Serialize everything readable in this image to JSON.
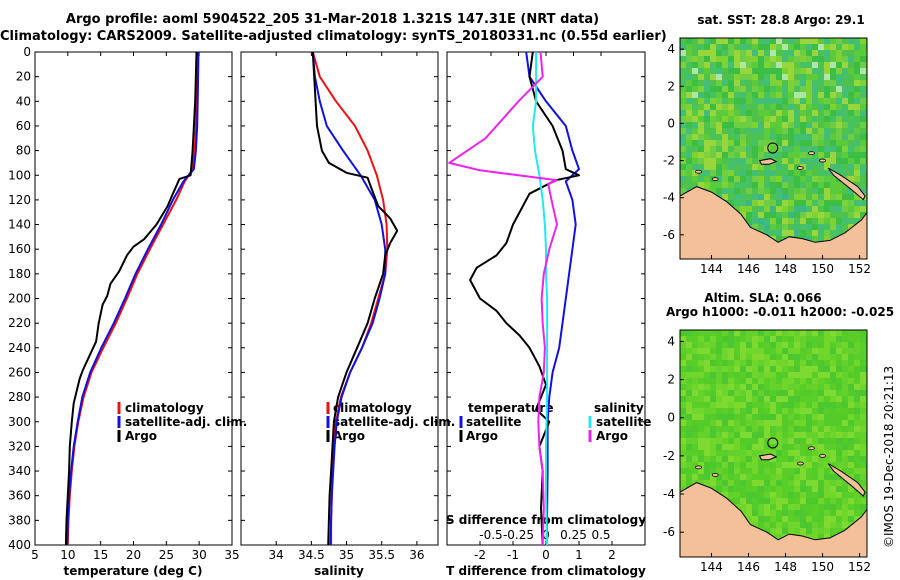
{
  "header": {
    "line1": "Argo profile: aoml 5904522_205 31-Mar-2018 1.321S 147.31E (NRT data)",
    "line2": "Climatology: CARS2009. Satellite-adjusted climatology: synTS_20180331.nc (0.55d earlier)"
  },
  "footer": {
    "credit": "©IMOS 19-Dec-2018 20:21:13"
  },
  "colors": {
    "climatology": "#ee1111",
    "satellite": "#1111dd",
    "argo": "#000000",
    "sat_salinity": "#22e8f0",
    "argo_salinity": "#ee22ee",
    "land": "#f4c09a"
  },
  "chart_data": [
    {
      "id": "temperature",
      "type": "line",
      "xlabel": "temperature (deg C)",
      "ylabel": "",
      "xlim": [
        5,
        35
      ],
      "ylim": [
        400,
        0
      ],
      "xticks": [
        5,
        10,
        15,
        20,
        25,
        30,
        35
      ],
      "yticks": [
        0,
        20,
        40,
        60,
        80,
        100,
        120,
        140,
        160,
        180,
        200,
        220,
        240,
        260,
        280,
        300,
        320,
        340,
        360,
        380,
        400
      ],
      "legend": [
        "climatology",
        "satellite-adj. clim.",
        "Argo"
      ],
      "series": [
        {
          "name": "climatology",
          "color": "#ee1111",
          "points": [
            [
              29.8,
              0
            ],
            [
              29.7,
              30
            ],
            [
              29.5,
              60
            ],
            [
              29.3,
              80
            ],
            [
              29.0,
              95
            ],
            [
              27.8,
              105
            ],
            [
              26.5,
              120
            ],
            [
              24.5,
              140
            ],
            [
              22.5,
              160
            ],
            [
              20.6,
              180
            ],
            [
              19.0,
              200
            ],
            [
              17.3,
              220
            ],
            [
              15.4,
              240
            ],
            [
              13.6,
              260
            ],
            [
              12.4,
              280
            ],
            [
              11.6,
              300
            ],
            [
              11.0,
              320
            ],
            [
              10.6,
              340
            ],
            [
              10.3,
              360
            ],
            [
              10.1,
              380
            ],
            [
              10.0,
              400
            ]
          ]
        },
        {
          "name": "satellite-adj. clim.",
          "color": "#1111dd",
          "points": [
            [
              29.9,
              0
            ],
            [
              29.8,
              30
            ],
            [
              29.7,
              60
            ],
            [
              29.5,
              80
            ],
            [
              29.2,
              95
            ],
            [
              27.6,
              105
            ],
            [
              26.0,
              120
            ],
            [
              24.2,
              140
            ],
            [
              22.2,
              160
            ],
            [
              20.3,
              180
            ],
            [
              18.7,
              200
            ],
            [
              17.0,
              220
            ],
            [
              15.1,
              240
            ],
            [
              13.4,
              260
            ],
            [
              12.2,
              280
            ],
            [
              11.5,
              300
            ],
            [
              10.9,
              320
            ],
            [
              10.5,
              340
            ],
            [
              10.2,
              360
            ],
            [
              10.0,
              380
            ],
            [
              9.9,
              400
            ]
          ]
        },
        {
          "name": "Argo",
          "color": "#000000",
          "points": [
            [
              29.6,
              0
            ],
            [
              29.4,
              40
            ],
            [
              29.0,
              80
            ],
            [
              28.7,
              100
            ],
            [
              27.0,
              103
            ],
            [
              26.0,
              115
            ],
            [
              25.2,
              125
            ],
            [
              23.5,
              140
            ],
            [
              21.6,
              152
            ],
            [
              20.0,
              158
            ],
            [
              19.0,
              165
            ],
            [
              17.8,
              178
            ],
            [
              16.5,
              188
            ],
            [
              16.0,
              198
            ],
            [
              15.3,
              205
            ],
            [
              14.7,
              220
            ],
            [
              14.3,
              235
            ],
            [
              13.0,
              250
            ],
            [
              12.3,
              258
            ],
            [
              11.8,
              265
            ],
            [
              10.9,
              285
            ],
            [
              10.6,
              300
            ],
            [
              10.3,
              320
            ],
            [
              10.2,
              340
            ],
            [
              10.0,
              360
            ],
            [
              9.8,
              380
            ],
            [
              9.7,
              400
            ]
          ]
        }
      ]
    },
    {
      "id": "salinity",
      "type": "line",
      "xlabel": "salinity",
      "ylabel": "",
      "xlim": [
        33.5,
        36.3
      ],
      "ylim": [
        400,
        0
      ],
      "xticks": [
        34,
        34.5,
        35,
        35.5,
        36
      ],
      "legend": [
        "climatology",
        "satellite-adj. clim.",
        "Argo"
      ],
      "series": [
        {
          "name": "climatology",
          "color": "#ee1111",
          "points": [
            [
              34.52,
              0
            ],
            [
              34.62,
              20
            ],
            [
              34.85,
              40
            ],
            [
              35.12,
              60
            ],
            [
              35.3,
              80
            ],
            [
              35.43,
              100
            ],
            [
              35.52,
              120
            ],
            [
              35.57,
              140
            ],
            [
              35.58,
              160
            ],
            [
              35.55,
              180
            ],
            [
              35.45,
              200
            ],
            [
              35.35,
              220
            ],
            [
              35.22,
              240
            ],
            [
              35.05,
              260
            ],
            [
              34.92,
              280
            ],
            [
              34.85,
              300
            ],
            [
              34.82,
              320
            ],
            [
              34.8,
              340
            ],
            [
              34.79,
              360
            ],
            [
              34.78,
              380
            ],
            [
              34.78,
              400
            ]
          ]
        },
        {
          "name": "satellite-adj. clim.",
          "color": "#1111dd",
          "points": [
            [
              34.52,
              0
            ],
            [
              34.55,
              20
            ],
            [
              34.62,
              40
            ],
            [
              34.72,
              60
            ],
            [
              34.95,
              80
            ],
            [
              35.2,
              100
            ],
            [
              35.4,
              120
            ],
            [
              35.5,
              140
            ],
            [
              35.55,
              160
            ],
            [
              35.55,
              180
            ],
            [
              35.47,
              200
            ],
            [
              35.37,
              220
            ],
            [
              35.22,
              240
            ],
            [
              35.05,
              260
            ],
            [
              34.93,
              280
            ],
            [
              34.86,
              300
            ],
            [
              34.83,
              320
            ],
            [
              34.81,
              340
            ],
            [
              34.79,
              360
            ],
            [
              34.78,
              380
            ],
            [
              34.77,
              400
            ]
          ]
        },
        {
          "name": "Argo",
          "color": "#000000",
          "points": [
            [
              34.52,
              0
            ],
            [
              34.55,
              30
            ],
            [
              34.58,
              60
            ],
            [
              34.65,
              80
            ],
            [
              34.75,
              90
            ],
            [
              35.0,
              98
            ],
            [
              35.3,
              102
            ],
            [
              35.35,
              110
            ],
            [
              35.45,
              125
            ],
            [
              35.62,
              135
            ],
            [
              35.72,
              145
            ],
            [
              35.62,
              155
            ],
            [
              35.55,
              165
            ],
            [
              35.52,
              180
            ],
            [
              35.4,
              200
            ],
            [
              35.3,
              220
            ],
            [
              35.15,
              240
            ],
            [
              35.0,
              260
            ],
            [
              34.88,
              280
            ],
            [
              34.82,
              300
            ],
            [
              34.8,
              320
            ],
            [
              34.78,
              340
            ],
            [
              34.76,
              360
            ],
            [
              34.75,
              380
            ],
            [
              34.74,
              400
            ]
          ]
        }
      ]
    },
    {
      "id": "difference",
      "type": "line",
      "xlabel": "T difference from climatology",
      "xlabel2": "S difference from climatology",
      "xlim": [
        -3,
        3
      ],
      "ylim": [
        400,
        0
      ],
      "xticks": [
        -2,
        -1,
        0,
        1,
        2
      ],
      "xlim2": [
        -0.9,
        0.9
      ],
      "xticks2": [
        -0.5,
        -0.25,
        0,
        0.25,
        0.5
      ],
      "legend_left_title": "temperature",
      "legend_right_title": "salinity",
      "legend": [
        "satellite",
        "Argo",
        "satellite",
        "Argo"
      ],
      "series": [
        {
          "name": "T satellite",
          "color": "#1111dd",
          "axis": "T",
          "points": [
            [
              -0.6,
              0
            ],
            [
              -0.5,
              20
            ],
            [
              0.0,
              40
            ],
            [
              0.6,
              60
            ],
            [
              0.8,
              80
            ],
            [
              1.0,
              95
            ],
            [
              0.6,
              105
            ],
            [
              0.8,
              120
            ],
            [
              0.9,
              140
            ],
            [
              0.8,
              160
            ],
            [
              0.7,
              180
            ],
            [
              0.6,
              200
            ],
            [
              0.5,
              220
            ],
            [
              0.4,
              240
            ],
            [
              0.2,
              260
            ],
            [
              0.1,
              280
            ],
            [
              0.05,
              300
            ],
            [
              0.05,
              340
            ],
            [
              0.02,
              400
            ]
          ]
        },
        {
          "name": "T Argo",
          "color": "#000000",
          "axis": "T",
          "points": [
            [
              -0.4,
              0
            ],
            [
              -0.5,
              20
            ],
            [
              -0.3,
              40
            ],
            [
              0.2,
              60
            ],
            [
              0.5,
              80
            ],
            [
              0.6,
              95
            ],
            [
              1.0,
              100
            ],
            [
              0.3,
              104
            ],
            [
              -0.5,
              115
            ],
            [
              -1.0,
              140
            ],
            [
              -1.2,
              155
            ],
            [
              -1.5,
              165
            ],
            [
              -2.1,
              175
            ],
            [
              -2.3,
              185
            ],
            [
              -2.0,
              200
            ],
            [
              -1.5,
              210
            ],
            [
              -1.2,
              220
            ],
            [
              -0.8,
              230
            ],
            [
              -0.5,
              240
            ],
            [
              -0.2,
              255
            ],
            [
              0.0,
              270
            ],
            [
              -0.3,
              290
            ],
            [
              0.1,
              300
            ],
            [
              -0.2,
              320
            ],
            [
              -0.1,
              340
            ],
            [
              -0.15,
              370
            ],
            [
              -0.1,
              400
            ]
          ]
        },
        {
          "name": "S satellite",
          "color": "#22e8f0",
          "axis": "S",
          "points": [
            [
              -0.09,
              0
            ],
            [
              -0.09,
              40
            ],
            [
              -0.12,
              60
            ],
            [
              -0.1,
              80
            ],
            [
              -0.06,
              100
            ],
            [
              -0.03,
              120
            ],
            [
              -0.01,
              140
            ],
            [
              0.0,
              160
            ],
            [
              0.0,
              180
            ],
            [
              0.01,
              200
            ],
            [
              0.01,
              240
            ],
            [
              0.01,
              280
            ],
            [
              0.0,
              320
            ],
            [
              0.0,
              360
            ],
            [
              0.01,
              400
            ]
          ]
        },
        {
          "name": "S Argo",
          "color": "#ee22ee",
          "axis": "S",
          "points": [
            [
              -0.05,
              0
            ],
            [
              -0.03,
              20
            ],
            [
              -0.25,
              40
            ],
            [
              -0.55,
              70
            ],
            [
              -0.88,
              90
            ],
            [
              -0.6,
              96
            ],
            [
              -0.25,
              100
            ],
            [
              0.1,
              104
            ],
            [
              0.02,
              107
            ],
            [
              0.05,
              120
            ],
            [
              0.1,
              140
            ],
            [
              0.03,
              160
            ],
            [
              -0.02,
              180
            ],
            [
              -0.04,
              200
            ],
            [
              -0.03,
              220
            ],
            [
              -0.01,
              240
            ],
            [
              -0.02,
              260
            ],
            [
              -0.06,
              280
            ],
            [
              -0.07,
              300
            ],
            [
              -0.06,
              320
            ],
            [
              -0.03,
              340
            ],
            [
              -0.02,
              370
            ],
            [
              -0.03,
              400
            ]
          ]
        }
      ]
    },
    {
      "id": "sst_map",
      "type": "heatmap",
      "title": "sat. SST: 28.8 Argo: 29.1",
      "xticks": [
        144,
        146,
        148,
        150,
        152
      ],
      "yticks": [
        4,
        2,
        0,
        -2,
        -4,
        -6
      ],
      "xlim": [
        142.3,
        152.4
      ],
      "ylim": [
        -7.3,
        4.6
      ],
      "marker": [
        147.31,
        -1.321
      ]
    },
    {
      "id": "sla_map",
      "type": "heatmap",
      "title": "Altim. SLA: 0.066",
      "subtitle": "Argo h1000: -0.011 h2000: -0.025",
      "xticks": [
        144,
        146,
        148,
        150,
        152
      ],
      "yticks": [
        4,
        2,
        0,
        -2,
        -4,
        -6
      ],
      "xlim": [
        142.3,
        152.4
      ],
      "ylim": [
        -7.3,
        4.6
      ],
      "marker": [
        147.31,
        -1.321
      ]
    }
  ]
}
